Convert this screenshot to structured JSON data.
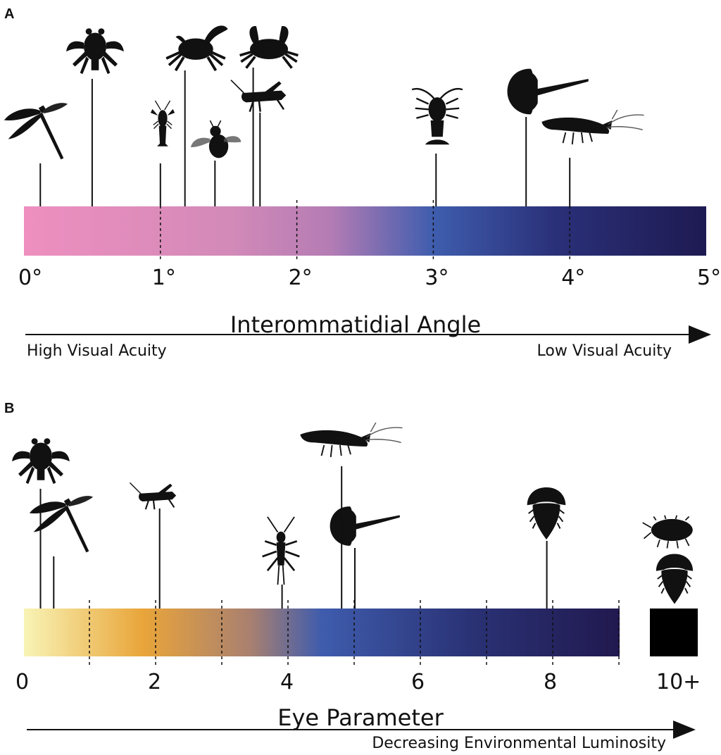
{
  "panel_a": {
    "letter": "A",
    "axis_title": "Interommatidial Angle",
    "left_note": "High Visual Acuity",
    "right_note": "Low Visual Acuity",
    "ticks": [
      "0°",
      "1°",
      "2°",
      "3°",
      "4°",
      "5°"
    ],
    "gradient_colors": [
      "#ee8fbf",
      "#d38ab8",
      "#b47cb4",
      "#3f5dae",
      "#2a3078",
      "#1e1a52"
    ],
    "markers": [
      {
        "icon": "dragonfly-icon",
        "value": 0.12
      },
      {
        "icon": "hermit-crab-icon",
        "value": 0.5
      },
      {
        "icon": "crayfish-icon",
        "value": 1.0
      },
      {
        "icon": "fiddler-crab-icon",
        "value": 1.18
      },
      {
        "icon": "bee-icon",
        "value": 1.4
      },
      {
        "icon": "crab-icon",
        "value": 1.68
      },
      {
        "icon": "grasshopper-icon",
        "value": 1.73
      },
      {
        "icon": "spiny-lobster-icon",
        "value": 3.02
      },
      {
        "icon": "horseshoe-crab-icon",
        "value": 3.68
      },
      {
        "icon": "shrimp-icon",
        "value": 4.0
      }
    ]
  },
  "panel_b": {
    "letter": "B",
    "axis_title": "Eye Parameter",
    "bottom_note": "Decreasing Environmental Luminosity",
    "ticks": [
      "0",
      "2",
      "4",
      "6",
      "8",
      "10+"
    ],
    "gradient_colors": [
      "#f8f4b6",
      "#e9a53a",
      "#a98070",
      "#3f5cad",
      "#2a3275",
      "#21194f"
    ],
    "markers": [
      {
        "icon": "hermit-crab-icon",
        "value": 0.25
      },
      {
        "icon": "dragonfly-icon",
        "value": 0.45
      },
      {
        "icon": "grasshopper-icon",
        "value": 2.05
      },
      {
        "icon": "stonefly-icon",
        "value": 3.9
      },
      {
        "icon": "shrimp-icon",
        "value": 4.8
      },
      {
        "icon": "horseshoe-crab-icon",
        "value": 5.0
      },
      {
        "icon": "trilobite-icon",
        "value": 7.9
      },
      {
        "icon": "isopod-icon",
        "value": 10
      },
      {
        "icon": "trilobite-icon",
        "value": 10
      }
    ]
  }
}
